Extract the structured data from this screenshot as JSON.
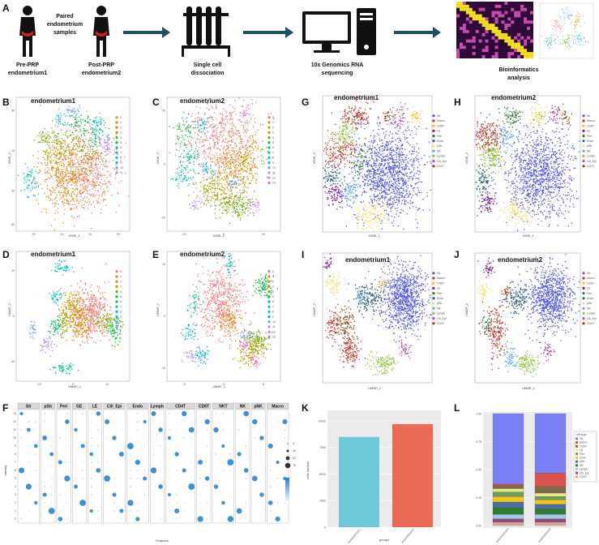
{
  "workflow": {
    "panel": "A",
    "paired_label": [
      "Paired",
      "endometrium",
      "samples"
    ],
    "pre_label": [
      "Pre-PRP",
      "endometrium1"
    ],
    "post_label": [
      "Post-PRP",
      "endometrium2"
    ],
    "step1": [
      "Single cell",
      "dissociation"
    ],
    "step2": [
      "10x Genomics RNA",
      "sequencing"
    ],
    "step3": [
      "Bioinformatics",
      "analysis"
    ]
  },
  "panels": {
    "B": {
      "letter": "B",
      "title": "endometrium1",
      "xlabel": "tSNE_1",
      "ylabel": "tSNE_2"
    },
    "C": {
      "letter": "C",
      "title": "endometrium2",
      "xlabel": "tSNE_1",
      "ylabel": "tSNE_2"
    },
    "D": {
      "letter": "D",
      "title": "endometrium1",
      "xlabel": "UMAP_1",
      "ylabel": "UMAP_2"
    },
    "E": {
      "letter": "E",
      "title": "endometrium2",
      "xlabel": "UMAP_1",
      "ylabel": "UMAP_2"
    },
    "G": {
      "letter": "G",
      "title": "endometrium1",
      "xlabel": "tSNE_1",
      "ylabel": "tSNE_2"
    },
    "H": {
      "letter": "H",
      "title": "endometrium2",
      "xlabel": "tSNE_1",
      "ylabel": "tSNE_2"
    },
    "I": {
      "letter": "I",
      "title": "endometrium1",
      "xlabel": "UMAP_1",
      "ylabel": "UMAP_2"
    },
    "J": {
      "letter": "J",
      "title": "endometrium2",
      "xlabel": "UMAP_1",
      "ylabel": "UMAP_2"
    },
    "F": {
      "letter": "F",
      "xlabel": "Features",
      "ylabel": "Identity"
    },
    "K": {
      "letter": "K",
      "xlabel": "groups",
      "ylabel": "cells number"
    },
    "L": {
      "letter": "L",
      "legend_title": "Cell type"
    }
  },
  "cluster_legend": [
    "0",
    "1",
    "2",
    "3",
    "4",
    "5",
    "6",
    "7",
    "8",
    "9",
    "10",
    "11"
  ],
  "cluster_legend_c": [
    "0",
    "1",
    "2",
    "3",
    "4",
    "5",
    "6",
    "7",
    "8",
    "9",
    "10",
    "11",
    "12",
    "13"
  ],
  "celltype_legend": [
    "Str",
    "Macro",
    "CD8T",
    "LE",
    "Peri",
    "Endo",
    "pStr",
    "NK",
    "Lymph",
    "Cili_Epi",
    "CD4T"
  ],
  "colors": {
    "arrow": "#1f4e5f",
    "str_blue": "#4f58f0",
    "k_bar1": "#6dc8d8",
    "k_bar2": "#ea6a55"
  },
  "chart_data": [
    {
      "panel": "F",
      "type": "scatter",
      "groups": [
        "Str",
        "pStr",
        "Peri",
        "GE",
        "LE",
        "Cili_Epi",
        "Endo",
        "Lymph",
        "CD4T",
        "CD8T",
        "NKT",
        "NK",
        "pNK",
        "Macro"
      ],
      "identity_ticks": [
        "13",
        "12",
        "11",
        "10",
        "9",
        "8",
        "7",
        "6",
        "5",
        "4",
        "3",
        "2",
        "1",
        "0"
      ],
      "size_legend": [
        "0",
        "25",
        "50",
        "75"
      ]
    },
    {
      "panel": "K",
      "type": "bar",
      "categories": [
        "endometrium1",
        "endometrium2"
      ],
      "values": [
        8500,
        9700
      ],
      "yticks": [
        "0",
        "2500",
        "5000",
        "7500",
        "10000"
      ],
      "ylim": [
        0,
        11000
      ]
    },
    {
      "panel": "L",
      "type": "bar",
      "categories": [
        "endometrium1",
        "endometrium2"
      ],
      "yticks": [
        "0.00",
        "0.25",
        "0.50",
        "0.75",
        "1.00"
      ],
      "series": [
        {
          "name": "Str",
          "values": [
            0.63,
            0.53
          ]
        },
        {
          "name": "Macro",
          "values": [
            0.01,
            0.12
          ]
        },
        {
          "name": "CD8T",
          "values": [
            0.03,
            0.06
          ]
        },
        {
          "name": "LE",
          "values": [
            0.03,
            0.03
          ]
        },
        {
          "name": "Peri",
          "values": [
            0.04,
            0.03
          ]
        },
        {
          "name": "Endo",
          "values": [
            0.05,
            0.04
          ]
        },
        {
          "name": "pStr",
          "values": [
            0.05,
            0.04
          ]
        },
        {
          "name": "NK",
          "values": [
            0.06,
            0.05
          ]
        },
        {
          "name": "Lymph",
          "values": [
            0.04,
            0.04
          ]
        },
        {
          "name": "Cili_Epi",
          "values": [
            0.03,
            0.03
          ]
        },
        {
          "name": "CD4T",
          "values": [
            0.03,
            0.03
          ]
        }
      ]
    }
  ]
}
